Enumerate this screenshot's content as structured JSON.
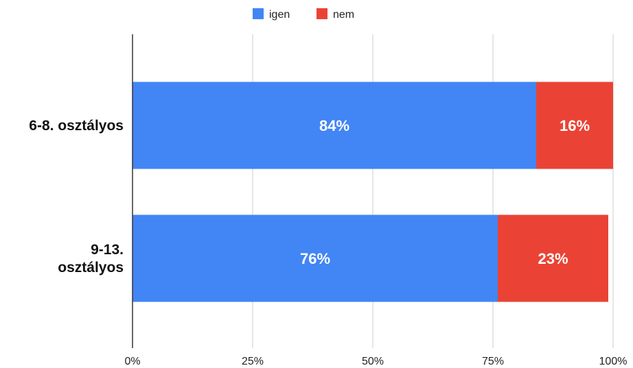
{
  "chart_data": {
    "type": "bar",
    "orientation": "horizontal",
    "stacked": true,
    "categories": [
      "6-8. osztályos",
      "9-13. osztályos"
    ],
    "category_lines": [
      [
        "6-8. osztályos"
      ],
      [
        "9-13.",
        "osztályos"
      ]
    ],
    "series": [
      {
        "name": "igen",
        "color": "#4285F4",
        "values": [
          84,
          76
        ],
        "labels": [
          "84%",
          "76%"
        ]
      },
      {
        "name": "nem",
        "color": "#EA4335",
        "values": [
          16,
          23
        ],
        "labels": [
          "16%",
          "23%"
        ]
      }
    ],
    "xlim": [
      0,
      100
    ],
    "x_ticks": [
      0,
      25,
      50,
      75,
      100
    ],
    "x_tick_labels": [
      "0%",
      "25%",
      "50%",
      "75%",
      "100%"
    ],
    "grid": true,
    "legend_position": "top-center"
  }
}
